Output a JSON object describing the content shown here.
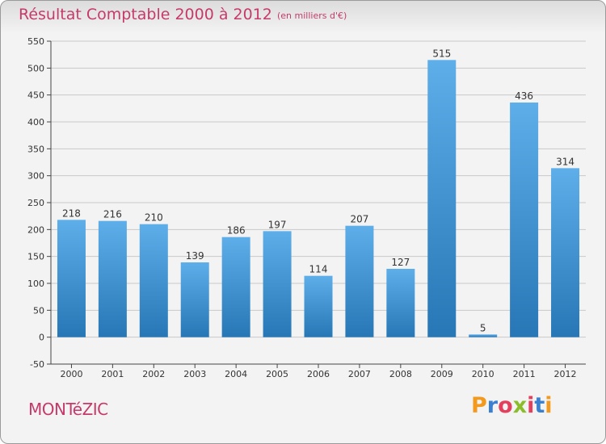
{
  "header": {
    "title": "Résultat Comptable 2000 à 2012",
    "subtitle": "(en milliers d'€)"
  },
  "footer": {
    "commune": "MONTéZIC",
    "logo_text": "Proxiti",
    "logo_letter_colors": [
      "#f39a1e",
      "#3a7fd0",
      "#e2405c",
      "#8bbd2b",
      "#e2405c",
      "#3a7fd0",
      "#f39a1e"
    ]
  },
  "colors": {
    "bar_top": "#5eaeea",
    "bar_bottom": "#2777b6",
    "grid": "#c8c8c8",
    "axis": "#444444",
    "accent": "#c63a6b"
  },
  "chart_data": {
    "type": "bar",
    "title": "Résultat Comptable 2000 à 2012",
    "subtitle": "(en milliers d'€)",
    "categories": [
      "2000",
      "2001",
      "2002",
      "2003",
      "2004",
      "2005",
      "2006",
      "2007",
      "2008",
      "2009",
      "2010",
      "2011",
      "2012"
    ],
    "values": [
      218,
      216,
      210,
      139,
      186,
      197,
      114,
      207,
      127,
      515,
      5,
      436,
      314
    ],
    "ylim": [
      -50,
      550
    ],
    "yticks": [
      -50,
      0,
      50,
      100,
      150,
      200,
      250,
      300,
      350,
      400,
      450,
      500,
      550
    ],
    "xlabel": "",
    "ylabel": "",
    "grid": true,
    "data_labels": true
  }
}
